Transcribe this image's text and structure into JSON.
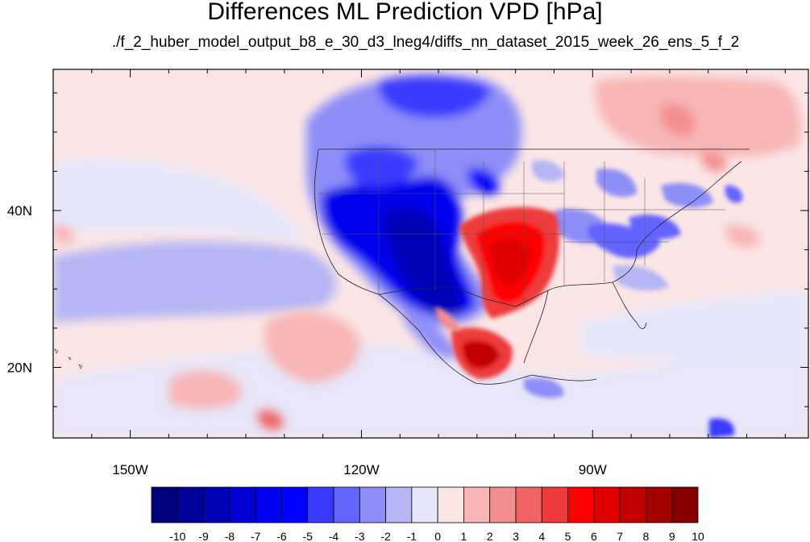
{
  "header": {
    "title": "Differences ML Prediction VPD [hPa]",
    "subtitle": "./f_2_huber_model_output_b8_e_30_d3_lneg4/diffs_nn_dataset_2015_week_26_ens_5_f_2"
  },
  "map": {
    "lon_range": [
      -160,
      -62
    ],
    "lat_range": [
      11,
      58
    ],
    "lon_ticks": [
      {
        "value": -150,
        "label": "150W"
      },
      {
        "value": -120,
        "label": "120W"
      },
      {
        "value": -90,
        "label": "90W"
      }
    ],
    "lat_ticks": [
      {
        "value": 40,
        "label": "40N"
      },
      {
        "value": 20,
        "label": "20N"
      }
    ],
    "background_color": "#fbe6e6"
  },
  "colorbar": {
    "labels": [
      "-10",
      "-9",
      "-8",
      "-7",
      "-6",
      "-5",
      "-4",
      "-3",
      "-2",
      "-1",
      "0",
      "1",
      "2",
      "3",
      "4",
      "5",
      "6",
      "7",
      "8",
      "9",
      "10"
    ],
    "colors": [
      "#00007a",
      "#00009a",
      "#0000b8",
      "#0000d6",
      "#0000ee",
      "#0000ff",
      "#3a3aff",
      "#6464ff",
      "#8e8ef8",
      "#b6b6f4",
      "#e6e6fa",
      "#fbe6e6",
      "#f8b6b6",
      "#f48e8e",
      "#f06464",
      "#ee3a3a",
      "#ff0000",
      "#e00000",
      "#c20000",
      "#a40000",
      "#860000"
    ]
  }
}
